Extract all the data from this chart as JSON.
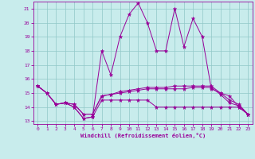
{
  "xlabel": "Windchill (Refroidissement éolien,°C)",
  "background_color": "#c8ecec",
  "line_color": "#990099",
  "xlim": [
    -0.5,
    23.5
  ],
  "ylim": [
    12.8,
    21.5
  ],
  "xticks": [
    0,
    1,
    2,
    3,
    4,
    5,
    6,
    7,
    8,
    9,
    10,
    11,
    12,
    13,
    14,
    15,
    16,
    17,
    18,
    19,
    20,
    21,
    22,
    23
  ],
  "yticks": [
    13,
    14,
    15,
    16,
    17,
    18,
    19,
    20,
    21
  ],
  "series": [
    [
      15.5,
      15.0,
      14.2,
      14.3,
      14.0,
      13.2,
      13.3,
      18.0,
      16.3,
      19.0,
      20.6,
      21.4,
      20.0,
      18.0,
      18.0,
      21.0,
      18.3,
      20.3,
      19.0,
      15.3,
      15.0,
      14.8,
      14.0,
      13.5
    ],
    [
      15.5,
      15.0,
      14.2,
      14.3,
      14.0,
      13.2,
      13.3,
      14.5,
      14.5,
      14.5,
      14.5,
      14.5,
      14.5,
      14.0,
      14.0,
      14.0,
      14.0,
      14.0,
      14.0,
      14.0,
      14.0,
      14.0,
      14.0,
      13.5
    ],
    [
      15.5,
      15.0,
      14.2,
      14.3,
      14.2,
      13.5,
      13.5,
      14.8,
      14.9,
      15.0,
      15.1,
      15.2,
      15.3,
      15.3,
      15.3,
      15.3,
      15.3,
      15.4,
      15.4,
      15.4,
      14.9,
      14.3,
      14.1,
      13.5
    ],
    [
      15.5,
      15.0,
      14.2,
      14.3,
      14.2,
      13.5,
      13.5,
      14.8,
      14.9,
      15.1,
      15.2,
      15.3,
      15.4,
      15.4,
      15.4,
      15.5,
      15.5,
      15.5,
      15.5,
      15.5,
      15.0,
      14.5,
      14.2,
      13.5
    ]
  ]
}
